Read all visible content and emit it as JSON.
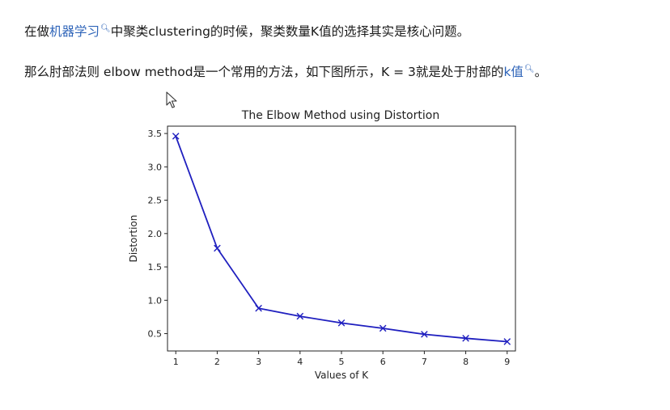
{
  "article": {
    "paragraph1": {
      "prefix": "在做",
      "link_ml": "机器学习",
      "suffix": "中聚类clustering的时候，聚类数量K值的选择其实是核心问题。"
    },
    "paragraph2": {
      "prefix": "那么肘部法则 elbow method是一个常用的方法，如下图所示，K = 3就是处于肘部的",
      "link_k": "k值",
      "suffix": "。"
    }
  },
  "icons": {
    "link_search": "magnifier-icon",
    "cursor": "mouse-pointer-icon"
  },
  "colors": {
    "link": "#2d63b8",
    "series": "#1f1fbf"
  },
  "chart_data": {
    "type": "line",
    "title": "The Elbow Method using Distortion",
    "xlabel": "Values of K",
    "ylabel": "Distortion",
    "x": [
      1,
      2,
      3,
      4,
      5,
      6,
      7,
      8,
      9
    ],
    "series": [
      {
        "name": "",
        "values": [
          3.46,
          1.78,
          0.88,
          0.76,
          0.66,
          0.58,
          0.49,
          0.43,
          0.38
        ],
        "marker": "x",
        "color": "#1f1fbf"
      }
    ],
    "xticks": [
      "1",
      "2",
      "3",
      "4",
      "5",
      "6",
      "7",
      "8",
      "9"
    ],
    "yticks": [
      "0.5",
      "1.0",
      "1.5",
      "2.0",
      "2.5",
      "3.0",
      "3.5"
    ],
    "ytick_values": [
      0.5,
      1.0,
      1.5,
      2.0,
      2.5,
      3.0,
      3.5
    ],
    "xlim": [
      0.8,
      9.2
    ],
    "ylim": [
      0.24,
      3.61
    ],
    "grid": false,
    "legend": "none"
  }
}
